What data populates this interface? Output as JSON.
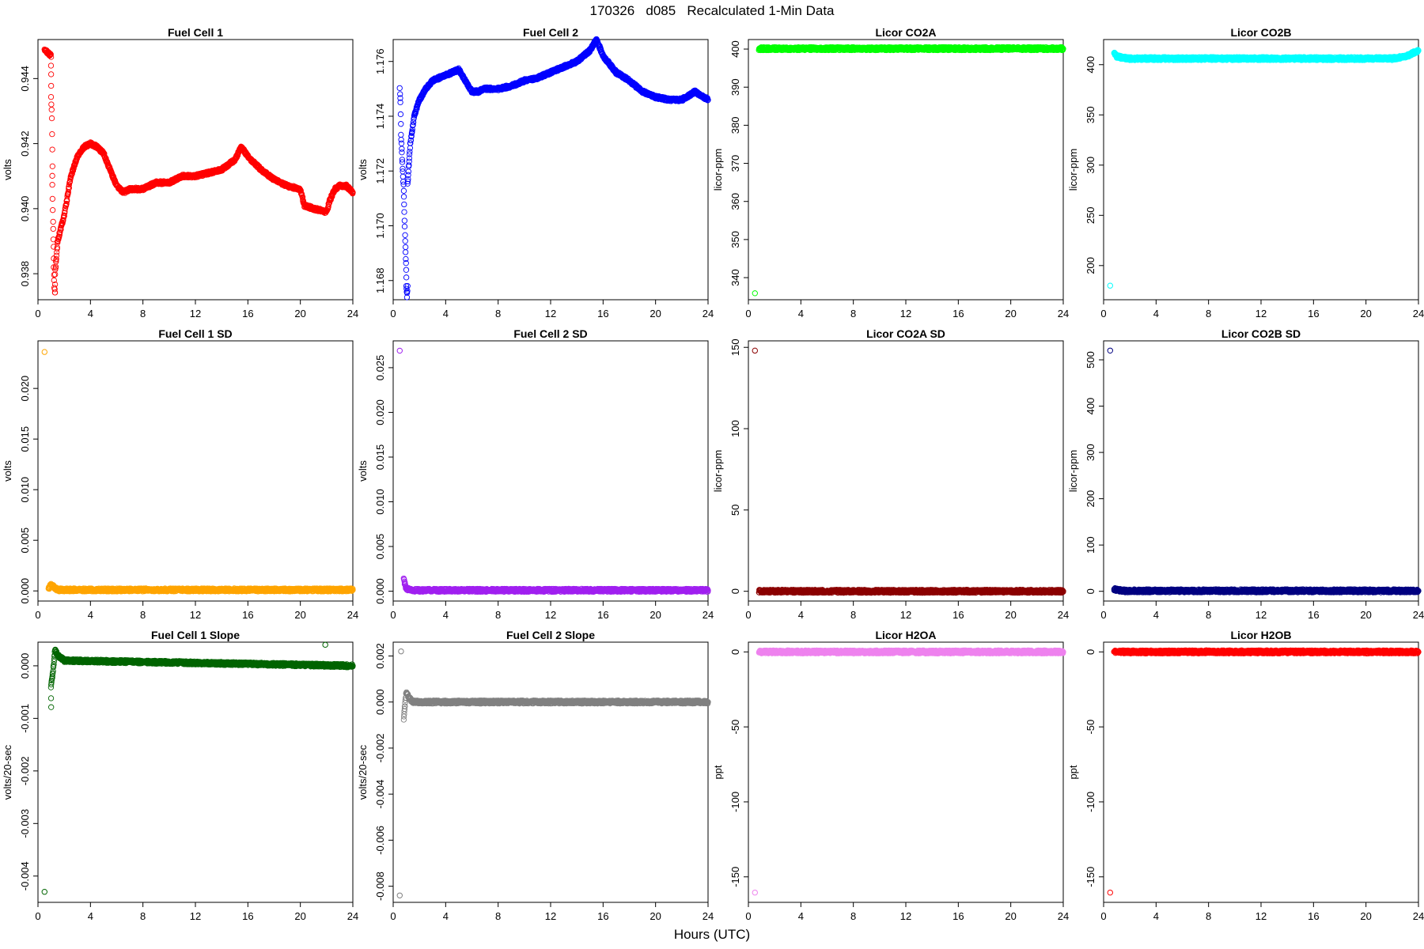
{
  "figure": {
    "title": "170326   d085   Recalculated 1-Min Data",
    "xlabel": "Hours (UTC)"
  },
  "chart_data": [
    {
      "id": "fc1",
      "type": "scatter",
      "title": "Fuel Cell 1",
      "ylabel": "volts",
      "color": "#ff0000",
      "xlim": [
        0,
        24
      ],
      "ylim": [
        0.9372,
        0.9452
      ],
      "xticks": [
        0,
        4,
        8,
        12,
        16,
        20,
        24
      ],
      "yticks": [
        0.938,
        0.94,
        0.942,
        0.944
      ],
      "series": [
        {
          "x": [
            0.5,
            1.0,
            1.0,
            1.0,
            1.05,
            1.1,
            1.1,
            1.15,
            1.2,
            1.2,
            1.25,
            1.3,
            1.3,
            1.4,
            1.5
          ],
          "y": [
            0.9449,
            0.9447,
            0.9441,
            0.9434,
            0.9428,
            0.9413,
            0.9407,
            0.9396,
            0.9388,
            0.9382,
            0.9376,
            0.9374,
            0.938,
            0.9385,
            0.939
          ]
        },
        {
          "x": [
            1.5,
            2,
            2.5,
            3,
            3.5,
            4,
            4.5,
            5,
            5.5,
            6,
            6.5,
            7,
            8,
            9,
            10,
            11,
            12,
            13,
            14,
            15,
            15.5,
            16,
            17,
            18,
            19,
            20,
            20.3,
            21,
            22,
            22.2,
            22.6,
            23,
            23.5,
            24
          ],
          "y": [
            0.939,
            0.9398,
            0.941,
            0.9416,
            0.9419,
            0.942,
            0.9419,
            0.9417,
            0.9412,
            0.9407,
            0.9405,
            0.9406,
            0.9406,
            0.9408,
            0.9408,
            0.941,
            0.941,
            0.9411,
            0.9412,
            0.9415,
            0.9419,
            0.9416,
            0.9412,
            0.9409,
            0.9407,
            0.9406,
            0.9401,
            0.94,
            0.9399,
            0.9402,
            0.9406,
            0.9407,
            0.9407,
            0.9405
          ]
        }
      ]
    },
    {
      "id": "fc2",
      "type": "scatter",
      "title": "Fuel Cell 2",
      "ylabel": "volts",
      "color": "#0000ff",
      "xlim": [
        0,
        24
      ],
      "ylim": [
        1.1673,
        1.1768
      ],
      "xticks": [
        0,
        4,
        8,
        12,
        16,
        20,
        24
      ],
      "yticks": [
        1.168,
        1.17,
        1.172,
        1.174,
        1.176
      ],
      "series": [
        {
          "x": [
            0.5,
            0.55,
            0.6,
            0.7,
            0.8,
            0.85,
            0.9,
            0.95,
            1.0,
            1.0,
            1.05,
            1.1
          ],
          "y": [
            1.175,
            1.1745,
            1.1733,
            1.1723,
            1.1713,
            1.1705,
            1.1697,
            1.169,
            1.1684,
            1.1678,
            1.1674,
            1.1678
          ]
        },
        {
          "x": [
            1.1,
            1.3,
            1.6,
            2,
            2.5,
            3,
            3.5,
            4,
            4.5,
            5,
            5.5,
            6,
            6.5,
            7,
            8,
            9,
            10,
            11,
            12,
            13,
            14,
            14.5,
            15,
            15.5,
            16,
            17,
            18,
            19,
            20,
            21,
            22,
            23,
            24
          ],
          "y": [
            1.1715,
            1.173,
            1.174,
            1.1746,
            1.175,
            1.1753,
            1.1754,
            1.1755,
            1.1756,
            1.1757,
            1.1753,
            1.1749,
            1.1749,
            1.175,
            1.175,
            1.1751,
            1.1753,
            1.1754,
            1.1756,
            1.1758,
            1.176,
            1.1762,
            1.1764,
            1.1768,
            1.1762,
            1.1756,
            1.1753,
            1.1749,
            1.1747,
            1.1746,
            1.1746,
            1.1749,
            1.1746
          ]
        }
      ]
    },
    {
      "id": "co2a",
      "type": "scatter",
      "title": "Licor CO2A",
      "ylabel": "licor-ppm",
      "color": "#00ff00",
      "xlim": [
        0,
        24
      ],
      "ylim": [
        334.2,
        402.5
      ],
      "xticks": [
        0,
        4,
        8,
        12,
        16,
        20,
        24
      ],
      "yticks": [
        340,
        350,
        360,
        370,
        380,
        390,
        400
      ],
      "series": [
        {
          "x": [
            0.5
          ],
          "y": [
            335.9
          ]
        },
        {
          "x": [
            0.8,
            24
          ],
          "y": [
            400.1,
            400.1
          ]
        }
      ]
    },
    {
      "id": "co2b",
      "type": "scatter",
      "title": "Licor CO2B",
      "ylabel": "licor-ppm",
      "color": "#00ffff",
      "xlim": [
        0,
        24
      ],
      "ylim": [
        166,
        425
      ],
      "xticks": [
        0,
        4,
        8,
        12,
        16,
        20,
        24
      ],
      "yticks": [
        200,
        250,
        300,
        350,
        400
      ],
      "series": [
        {
          "x": [
            0.5
          ],
          "y": [
            180
          ]
        },
        {
          "x": [
            0.8,
            1,
            2,
            4,
            6,
            8,
            10,
            12,
            14,
            16,
            18,
            20,
            22,
            23,
            23.5,
            24
          ],
          "y": [
            412,
            408,
            406,
            406,
            406,
            406,
            406,
            406,
            406,
            406,
            406,
            406,
            406,
            408,
            411,
            414
          ]
        }
      ]
    },
    {
      "id": "fc1sd",
      "type": "scatter",
      "title": "Fuel Cell 1 SD",
      "ylabel": "volts",
      "color": "#ffa500",
      "xlim": [
        0,
        24
      ],
      "ylim": [
        -0.001,
        0.0247
      ],
      "xticks": [
        0,
        4,
        8,
        12,
        16,
        20,
        24
      ],
      "yticks": [
        0.0,
        0.005,
        0.01,
        0.015,
        0.02
      ],
      "series": [
        {
          "x": [
            0.5
          ],
          "y": [
            0.0236
          ]
        },
        {
          "x": [
            0.8,
            1,
            1.5,
            24
          ],
          "y": [
            0.0002,
            0.0006,
            0.0001,
            0.0001
          ]
        }
      ]
    },
    {
      "id": "fc2sd",
      "type": "scatter",
      "title": "Fuel Cell 2 SD",
      "ylabel": "volts",
      "color": "#a020f0",
      "xlim": [
        0,
        24
      ],
      "ylim": [
        -0.0011,
        0.028
      ],
      "xticks": [
        0,
        4,
        8,
        12,
        16,
        20,
        24
      ],
      "yticks": [
        0.0,
        0.005,
        0.01,
        0.015,
        0.02,
        0.025
      ],
      "series": [
        {
          "x": [
            0.5
          ],
          "y": [
            0.0269
          ]
        },
        {
          "x": [
            0.8,
            1,
            1.5,
            24
          ],
          "y": [
            0.0013,
            0.0003,
            0.0001,
            0.0001
          ]
        }
      ]
    },
    {
      "id": "co2asd",
      "type": "scatter",
      "title": "Licor CO2A SD",
      "ylabel": "licor-ppm",
      "color": "#8b0000",
      "xlim": [
        0,
        24
      ],
      "ylim": [
        -6,
        154
      ],
      "xticks": [
        0,
        4,
        8,
        12,
        16,
        20,
        24
      ],
      "yticks": [
        0,
        50,
        100,
        150
      ],
      "series": [
        {
          "x": [
            0.5
          ],
          "y": [
            148
          ]
        },
        {
          "x": [
            0.8,
            24
          ],
          "y": [
            0,
            0
          ]
        }
      ]
    },
    {
      "id": "co2bsd",
      "type": "scatter",
      "title": "Licor CO2B SD",
      "ylabel": "licor-ppm",
      "color": "#000080",
      "xlim": [
        0,
        24
      ],
      "ylim": [
        -21,
        541
      ],
      "xticks": [
        0,
        4,
        8,
        12,
        16,
        20,
        24
      ],
      "yticks": [
        0,
        100,
        200,
        300,
        400,
        500
      ],
      "series": [
        {
          "x": [
            0.5
          ],
          "y": [
            520
          ]
        },
        {
          "x": [
            0.8,
            1,
            1.5,
            24
          ],
          "y": [
            5,
            3,
            1,
            1
          ]
        }
      ]
    },
    {
      "id": "fc1slope",
      "type": "scatter",
      "title": "Fuel Cell 1 Slope",
      "ylabel": "volts/20-sec",
      "color": "#006400",
      "xlim": [
        0,
        24
      ],
      "ylim": [
        -0.0045,
        0.00045
      ],
      "xticks": [
        0,
        4,
        8,
        12,
        16,
        20,
        24
      ],
      "yticks": [
        -0.004,
        -0.003,
        -0.002,
        -0.001,
        0.0
      ],
      "series": [
        {
          "x": [
            0.5
          ],
          "y": [
            -0.0043
          ]
        },
        {
          "x": [
            1,
            1.0,
            1.1,
            1.3,
            1.5,
            2,
            24
          ],
          "y": [
            -0.0008,
            -0.0004,
            -0.0002,
            0.0003,
            0.0002,
            0.0001,
            0.0
          ]
        },
        {
          "x": [
            21.9
          ],
          "y": [
            0.0004
          ]
        }
      ]
    },
    {
      "id": "fc2slope",
      "type": "scatter",
      "title": "Fuel Cell 2 Slope",
      "ylabel": "volts/20-sec",
      "color": "#808080",
      "xlim": [
        0,
        24
      ],
      "ylim": [
        -0.0087,
        0.0026
      ],
      "xticks": [
        0,
        4,
        8,
        12,
        16,
        20,
        24
      ],
      "yticks": [
        -0.008,
        -0.006,
        -0.004,
        -0.002,
        0.0,
        0.002
      ],
      "series": [
        {
          "x": [
            0.5
          ],
          "y": [
            -0.0084
          ]
        },
        {
          "x": [
            0.6
          ],
          "y": [
            0.0022
          ]
        },
        {
          "x": [
            0.8,
            1,
            1.2,
            1.5,
            24
          ],
          "y": [
            -0.0007,
            0.0004,
            0.0002,
            0.0,
            0.0
          ]
        }
      ]
    },
    {
      "id": "h2oa",
      "type": "scatter",
      "title": "Licor H2OA",
      "ylabel": "ppt",
      "color": "#ee82ee",
      "xlim": [
        0,
        24
      ],
      "ylim": [
        -167,
        6.5
      ],
      "xticks": [
        0,
        4,
        8,
        12,
        16,
        20,
        24
      ],
      "yticks": [
        -150,
        -100,
        -50,
        0
      ],
      "series": [
        {
          "x": [
            0.5
          ],
          "y": [
            -160.5
          ]
        },
        {
          "x": [
            0.8,
            24
          ],
          "y": [
            0,
            0
          ]
        }
      ]
    },
    {
      "id": "h2ob",
      "type": "scatter",
      "title": "Licor H2OB",
      "ylabel": "ppt",
      "color": "#ff0000",
      "xlim": [
        0,
        24
      ],
      "ylim": [
        -167,
        6.5
      ],
      "xticks": [
        0,
        4,
        8,
        12,
        16,
        20,
        24
      ],
      "yticks": [
        -150,
        -100,
        -50,
        0
      ],
      "series": [
        {
          "x": [
            0.5
          ],
          "y": [
            -160.5
          ]
        },
        {
          "x": [
            0.8,
            24
          ],
          "y": [
            0,
            0
          ]
        }
      ]
    }
  ]
}
